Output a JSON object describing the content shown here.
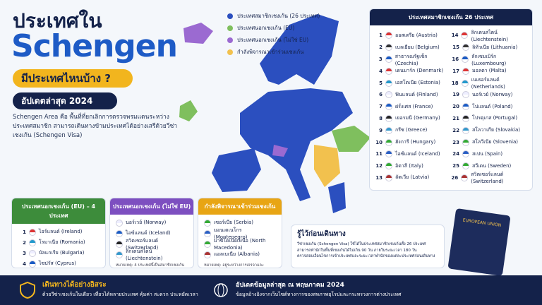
{
  "header": {
    "title_line1": "ประเทศใน",
    "title_line2": "Schengen",
    "question": "มีประเทศไหนบ้าง ?",
    "update": "อัปเดตล่าสุด 2024",
    "description": "Schengen Area คือ พื้นที่ที่ยกเลิกการตรวจพรมแดนระหว่างประเทศสมาชิก สามารถเดินทางข้ามประเทศได้อย่างเสรีด้วยวีซ่าเชงเก้น (Schengen Visa)"
  },
  "legend": [
    "ประเทศสมาชิกเชงเก้น (26 ประเทศ)",
    "ประเทศนอกเชงเก้น (EU)",
    "ประเทศนอกเชงเก้น (ไม่ใช่ EU)",
    "กำลังพิจารณาเข้าร่วมเชงเก้น"
  ],
  "members": {
    "title": "ประเทศสมาชิกเชงเก้น 26 ประเทศ",
    "items": [
      {
        "num": 1,
        "name": "ออสเตรีย (Austria)"
      },
      {
        "num": 2,
        "name": "เบลเยียม (Belgium)"
      },
      {
        "num": 3,
        "name": "สาธารณรัฐเช็ก (Czechia)"
      },
      {
        "num": 4,
        "name": "เดนมาร์ก (Denmark)"
      },
      {
        "num": 5,
        "name": "เอสโตเนีย (Estonia)"
      },
      {
        "num": 6,
        "name": "ฟินแลนด์ (Finland)"
      },
      {
        "num": 7,
        "name": "ฝรั่งเศส (France)"
      },
      {
        "num": 8,
        "name": "เยอรมนี (Germany)"
      },
      {
        "num": 9,
        "name": "กรีซ (Greece)"
      },
      {
        "num": 10,
        "name": "ฮังการี (Hungary)"
      },
      {
        "num": 11,
        "name": "ไอซ์แลนด์ (Iceland)"
      },
      {
        "num": 12,
        "name": "อิตาลี (Italy)"
      },
      {
        "num": 13,
        "name": "ลัตเวีย (Latvia)"
      },
      {
        "num": 14,
        "name": "ลิกเตนสไตน์ (Liechtenstein)"
      },
      {
        "num": 15,
        "name": "ลิทัวเนีย (Lithuania)"
      },
      {
        "num": 16,
        "name": "ลักเซมเบิร์ก (Luxembourg)"
      },
      {
        "num": 17,
        "name": "มอลตา (Malta)"
      },
      {
        "num": 18,
        "name": "เนเธอร์แลนด์ (Netherlands)"
      },
      {
        "num": 19,
        "name": "นอร์เวย์ (Norway)"
      },
      {
        "num": 20,
        "name": "โปแลนด์ (Poland)"
      },
      {
        "num": 21,
        "name": "โปรตุเกส (Portugal)"
      },
      {
        "num": 22,
        "name": "สโลวาเกีย (Slovakia)"
      },
      {
        "num": 23,
        "name": "สโลวีเนีย (Slovenia)"
      },
      {
        "num": 24,
        "name": "สเปน (Spain)"
      },
      {
        "num": 25,
        "name": "สวีเดน (Sweden)"
      },
      {
        "num": 26,
        "name": "สวิตเซอร์แลนด์ (Switzerland)"
      }
    ]
  },
  "non_schengen_eu": {
    "title": "ประเทศนอกเชงเก้น (EU) – 4 ประเทศ",
    "items": [
      {
        "num": 1,
        "name": "ไอร์แลนด์ (Ireland)"
      },
      {
        "num": 2,
        "name": "โรมาเนีย (Romania)"
      },
      {
        "num": 3,
        "name": "บัลแกเรีย (Bulgaria)"
      },
      {
        "num": 4,
        "name": "ไซปรัส (Cyprus)"
      }
    ]
  },
  "non_eu": {
    "title": "ประเทศนอกเชงเก้น (ไม่ใช่ EU)",
    "items": [
      "นอร์เวย์ (Norway)",
      "ไอซ์แลนด์ (Iceland)",
      "สวิตเซอร์แลนด์ (Switzerland)",
      "ลิกเตนสไตน์ (Liechtenstein)"
    ],
    "note": "หมายเหตุ: 4 ประเทศนี้เป็นสมาชิกเชงเก้น แม้จะอยู่นอกสหภาพยุโรป (EU)"
  },
  "candidates": {
    "title": "กำลังพิจารณาเข้าร่วมเชงเก้น",
    "items": [
      "เซอร์เบีย (Serbia)",
      "มอนเตเนโกร (Montenegro)",
      "มาซิโดเนียเหนือ (North Macedonia)",
      "แอลเบเนีย (Albania)"
    ],
    "note": "หมายเหตุ: อยู่ระหว่างการเจรจาและปรับปรุงระบบตามข้อกำหนดของเชงเก้น"
  },
  "tips": {
    "title": "รู้ไว้ก่อนเดินทาง",
    "items": [
      "วีซ่าเชงเก้น (Schengen Visa) ใช้ได้ในประเทศสมาชิกเชงเก้นทั้ง 26 ประเทศ",
      "สามารถพำนักในพื้นที่เชงเก้นได้ไม่เกิน 90 วัน ภายในระยะเวลา 180 วัน",
      "ตรวจสอบเงื่อนไขการเข้าประเทศและระยะเวลาพำนักของแต่ละประเทศก่อนเดินทาง"
    ]
  },
  "passport": "EUROPEAN UNION",
  "footer": {
    "left_title": "เดินทางได้อย่างอิสระ",
    "left_text": "ด้วยวีซ่าเชงเก้นใบเดียว เที่ยวได้หลายประเทศ คุ้มค่า สะดวก ประหยัดเวลา",
    "right_title": "อัปเดตข้อมูลล่าสุด ณ พฤษภาคม 2024",
    "right_text": "ข้อมูลอ้างอิงจากเว็บไซต์ทางการของสหภาพยุโรปและกระทรวงการต่างประเทศ"
  }
}
